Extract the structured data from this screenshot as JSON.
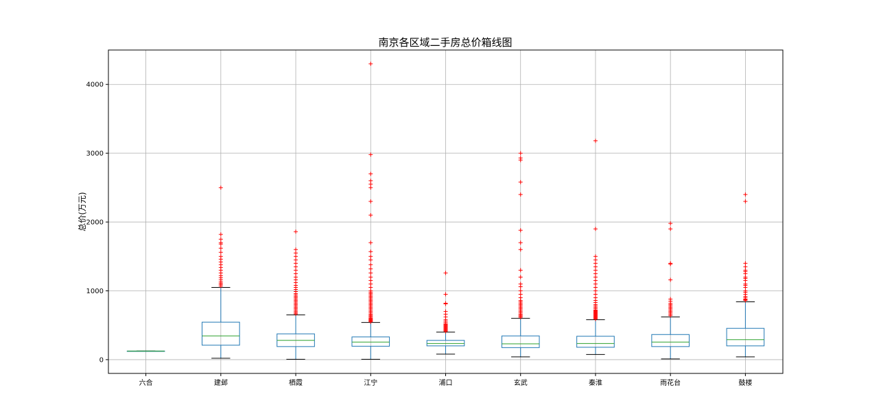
{
  "chart_data": {
    "type": "box",
    "title": "南京各区域二手房总价箱线图",
    "xlabel": "",
    "ylabel": "总价(万元)",
    "ylim": [
      -200,
      4500
    ],
    "yticks": [
      0,
      1000,
      2000,
      3000,
      4000
    ],
    "grid": true,
    "colors": {
      "box": "#1f77b4",
      "median": "#2ca02c",
      "whisker_cap": "#000000",
      "flier": "#ff0000",
      "grid": "#b0b0b0"
    },
    "categories": [
      "六合",
      "建邺",
      "栖霞",
      "江宁",
      "浦口",
      "玄武",
      "秦淮",
      "雨花台",
      "鼓楼"
    ],
    "boxes": [
      {
        "category": "六合",
        "whislo": 125,
        "q1": 125,
        "med": 125,
        "q3": 125,
        "whishi": 125,
        "fliers": []
      },
      {
        "category": "建邺",
        "whislo": 20,
        "q1": 210,
        "med": 345,
        "q3": 545,
        "whishi": 1050,
        "fliers": [
          1070,
          1090,
          1110,
          1130,
          1160,
          1190,
          1220,
          1260,
          1300,
          1340,
          1380,
          1420,
          1460,
          1500,
          1560,
          1620,
          1680,
          1700,
          1750,
          1820,
          2500
        ]
      },
      {
        "category": "栖霞",
        "whislo": 5,
        "q1": 190,
        "med": 280,
        "q3": 375,
        "whishi": 650,
        "fliers": [
          665,
          680,
          700,
          720,
          740,
          760,
          780,
          800,
          820,
          840,
          860,
          880,
          900,
          920,
          940,
          960,
          990,
          1020,
          1050,
          1080,
          1120,
          1160,
          1200,
          1250,
          1300,
          1350,
          1400,
          1450,
          1500,
          1550,
          1600,
          1860
        ]
      },
      {
        "category": "江宁",
        "whislo": 5,
        "q1": 195,
        "med": 255,
        "q3": 330,
        "whishi": 540,
        "fliers": [
          550,
          560,
          570,
          580,
          590,
          600,
          615,
          630,
          645,
          660,
          680,
          700,
          720,
          740,
          760,
          780,
          800,
          820,
          840,
          860,
          880,
          900,
          920,
          940,
          960,
          980,
          1000,
          1050,
          1100,
          1150,
          1200,
          1260,
          1320,
          1380,
          1450,
          1500,
          1570,
          1700,
          2100,
          2300,
          2500,
          2550,
          2600,
          2700,
          2980,
          4300
        ]
      },
      {
        "category": "浦口",
        "whislo": 80,
        "q1": 200,
        "med": 235,
        "q3": 280,
        "whishi": 400,
        "fliers": [
          410,
          420,
          430,
          440,
          450,
          460,
          470,
          480,
          490,
          500,
          510,
          520,
          540,
          560,
          580,
          620,
          660,
          700,
          810,
          820,
          950,
          1260
        ]
      },
      {
        "category": "玄武",
        "whislo": 40,
        "q1": 175,
        "med": 230,
        "q3": 345,
        "whishi": 600,
        "fliers": [
          615,
          630,
          645,
          660,
          680,
          700,
          720,
          740,
          760,
          780,
          800,
          820,
          840,
          860,
          900,
          950,
          1000,
          1060,
          1100,
          1200,
          1300,
          1600,
          1700,
          1880,
          2400,
          2580,
          2900,
          2930,
          3000
        ]
      },
      {
        "category": "秦淮",
        "whislo": 75,
        "q1": 180,
        "med": 235,
        "q3": 340,
        "whishi": 580,
        "fliers": [
          590,
          600,
          610,
          620,
          630,
          640,
          650,
          660,
          670,
          680,
          690,
          700,
          710,
          720,
          740,
          760,
          780,
          800,
          830,
          860,
          900,
          950,
          1000,
          1050,
          1100,
          1150,
          1200,
          1250,
          1300,
          1350,
          1400,
          1450,
          1500,
          1900,
          3180
        ]
      },
      {
        "category": "雨花台",
        "whislo": 10,
        "q1": 190,
        "med": 255,
        "q3": 365,
        "whishi": 620,
        "fliers": [
          640,
          660,
          680,
          700,
          720,
          740,
          760,
          780,
          800,
          820,
          850,
          880,
          1160,
          1390,
          1400,
          1900,
          1980
        ]
      },
      {
        "category": "鼓楼",
        "whislo": 40,
        "q1": 200,
        "med": 290,
        "q3": 455,
        "whishi": 840,
        "fliers": [
          860,
          870,
          880,
          900,
          920,
          950,
          980,
          1000,
          1050,
          1080,
          1100,
          1150,
          1180,
          1200,
          1250,
          1280,
          1300,
          1350,
          1400,
          2300,
          2400
        ]
      }
    ]
  }
}
